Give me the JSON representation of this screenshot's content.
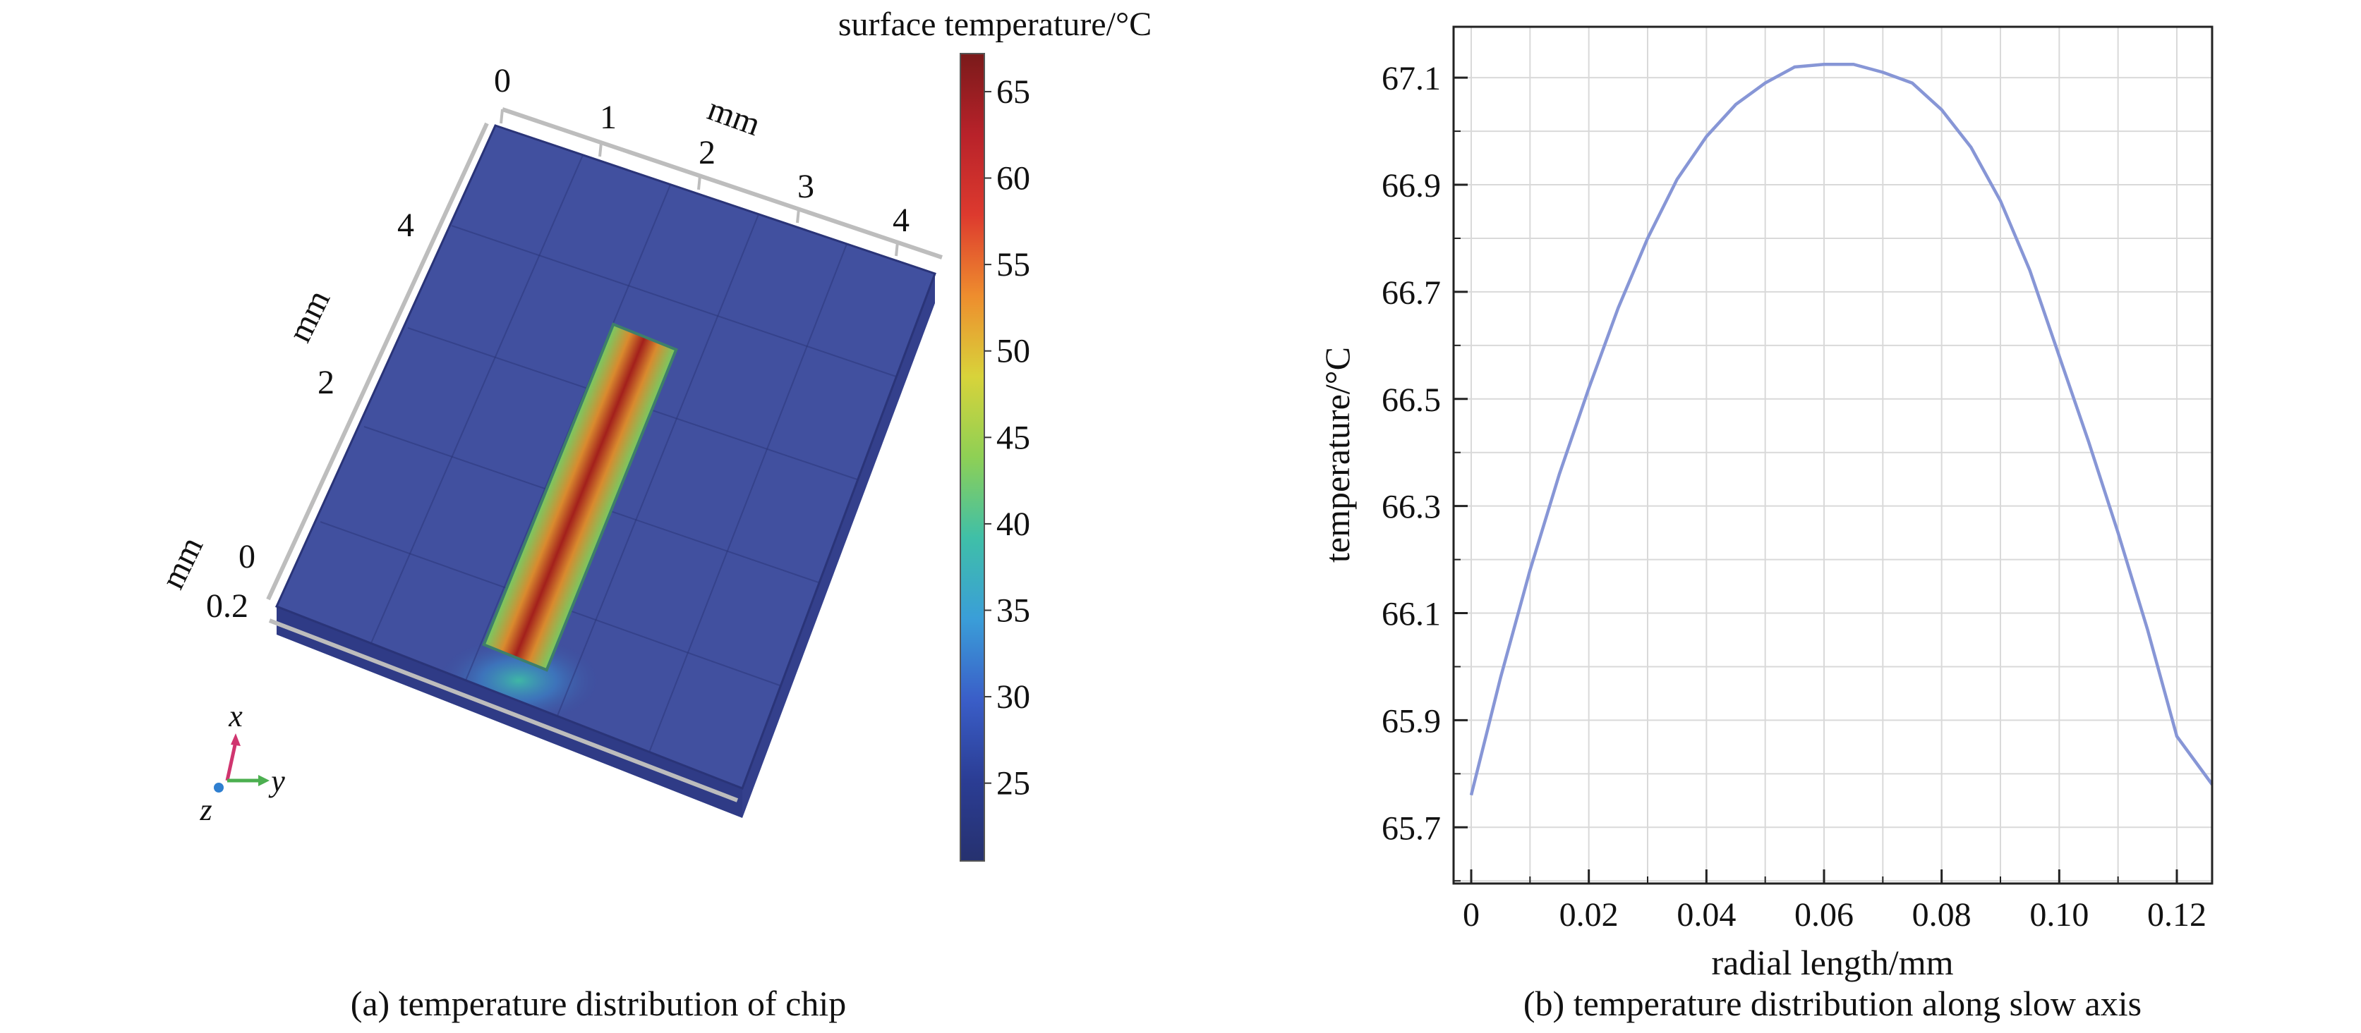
{
  "colors": {
    "chip_base": "#3d4a9a",
    "chip_top": "#41509f",
    "chip_edge": "#2a3478",
    "hot_core": "#a3201c",
    "line_series": "#8796d6",
    "axis": "#222222",
    "grid": "#d9d9d9"
  },
  "panel_a": {
    "caption": "(a) temperature distribution of chip",
    "colorbar": {
      "title": "surface temperature/°C",
      "ticks": [
        "65",
        "60",
        "55",
        "50",
        "45",
        "40",
        "35",
        "30",
        "25"
      ],
      "tick_values": [
        65,
        60,
        55,
        50,
        45,
        40,
        35,
        30,
        25
      ],
      "min": 20.5,
      "max": 67.2,
      "stops": [
        "#7a1a1a",
        "#b8222a",
        "#dd3a2e",
        "#ee8d2e",
        "#d8d33a",
        "#8ed055",
        "#3fbfa8",
        "#3a9ed8",
        "#3a5ec8",
        "#2b3d94",
        "#26316f"
      ]
    },
    "top_axis": {
      "ticks": [
        "0",
        "1",
        "2",
        "3",
        "4"
      ],
      "unit": "mm"
    },
    "left_axis": {
      "ticks": [
        "4",
        "2",
        "0"
      ],
      "unit": "mm"
    },
    "thickness_axis": {
      "tick": "0.2",
      "unit": "mm"
    },
    "triad": {
      "x": "x",
      "y": "y",
      "z": "z"
    }
  },
  "chart_data": {
    "type": "line",
    "caption": "(b) temperature distribution along slow axis",
    "xlabel": "radial length/mm",
    "ylabel": "temperature/°C",
    "xlim": [
      -0.003,
      0.126
    ],
    "ylim": [
      65.595,
      67.195
    ],
    "x_ticks": [
      0,
      0.02,
      0.04,
      0.06,
      0.08,
      0.1,
      0.12
    ],
    "x_tick_labels": [
      "0",
      "0.02",
      "0.04",
      "0.06",
      "0.08",
      "0.10",
      "0.12"
    ],
    "y_ticks": [
      65.7,
      65.9,
      66.1,
      66.3,
      66.5,
      66.7,
      66.9,
      67.1
    ],
    "y_tick_labels": [
      "65.7",
      "65.9",
      "66.1",
      "66.3",
      "66.5",
      "66.7",
      "66.9",
      "67.1"
    ],
    "grid": true,
    "series": [
      {
        "x": [
          0,
          0.005,
          0.01,
          0.015,
          0.02,
          0.025,
          0.03,
          0.035,
          0.04,
          0.045,
          0.05,
          0.055,
          0.06,
          0.065,
          0.07,
          0.075,
          0.08,
          0.085,
          0.09,
          0.095,
          0.1,
          0.105,
          0.11,
          0.115,
          0.12,
          0.126
        ],
        "y": [
          65.76,
          65.98,
          66.18,
          66.36,
          66.52,
          66.67,
          66.8,
          66.91,
          66.99,
          67.05,
          67.09,
          67.12,
          67.125,
          67.125,
          67.11,
          67.09,
          67.04,
          66.97,
          66.87,
          66.74,
          66.58,
          66.42,
          66.25,
          66.07,
          65.87,
          65.78
        ]
      }
    ]
  }
}
